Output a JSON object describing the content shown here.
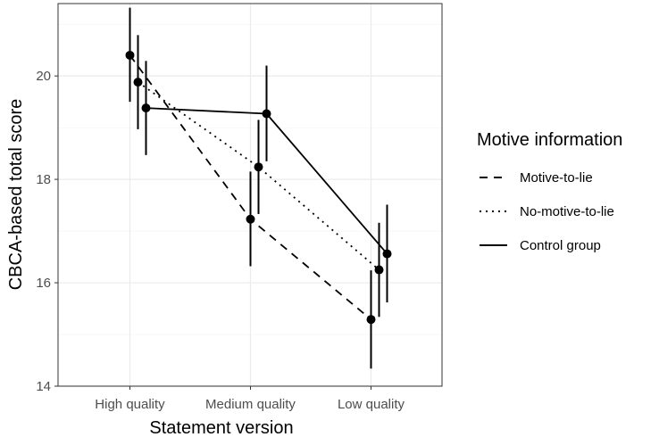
{
  "chart_data": {
    "type": "line",
    "xlabel": "Statement version",
    "ylabel": "CBCA-based total score",
    "categories": [
      "High quality",
      "Medium quality",
      "Low quality"
    ],
    "ylim": [
      14,
      21.4
    ],
    "yticks": [
      14,
      16,
      18,
      20
    ],
    "grid": true,
    "legend": {
      "title": "Motive information",
      "position": "right"
    },
    "series": [
      {
        "name": "Motive-to-lie",
        "linestyle": "dashed",
        "values": [
          20.4,
          17.23,
          15.29
        ],
        "ci_lower": [
          19.5,
          16.32,
          14.34
        ],
        "ci_upper": [
          21.32,
          18.15,
          16.24
        ]
      },
      {
        "name": "No-motive-to-lie",
        "linestyle": "dotted",
        "values": [
          19.88,
          18.24,
          16.25
        ],
        "ci_lower": [
          18.97,
          17.33,
          15.34
        ],
        "ci_upper": [
          20.79,
          19.15,
          17.16
        ]
      },
      {
        "name": "Control group",
        "linestyle": "solid",
        "values": [
          19.38,
          19.27,
          16.56
        ],
        "ci_lower": [
          18.47,
          18.35,
          15.62
        ],
        "ci_upper": [
          20.29,
          20.2,
          17.51
        ]
      }
    ]
  }
}
